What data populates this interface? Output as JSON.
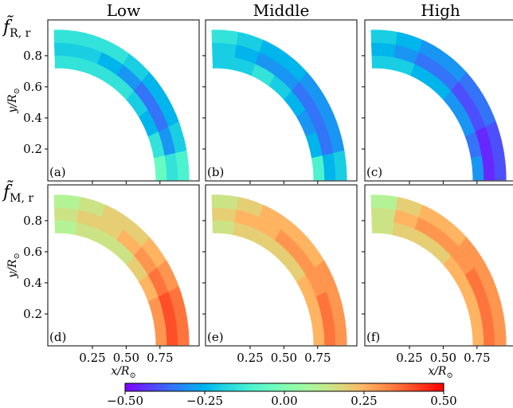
{
  "chart_data": {
    "type": "heatmap",
    "colormap": "rainbow",
    "column_titles": [
      "Low",
      "Middle",
      "High"
    ],
    "row_labels": [
      {
        "symbol": "f̃",
        "subscript": "R, r"
      },
      {
        "symbol": "f̃",
        "subscript": "M, r"
      }
    ],
    "ylabel": {
      "text": "y/R",
      "subscript": "⊙"
    },
    "xlabel": {
      "text": "x/R",
      "subscript": "⊙"
    },
    "xlim": [
      -0.08,
      1.04
    ],
    "ylim": [
      -0.005,
      1.03
    ],
    "xticks": [
      {
        "value": 0.25,
        "label": "0.25"
      },
      {
        "value": 0.5,
        "label": "0.50"
      },
      {
        "value": 0.75,
        "label": "0.75"
      }
    ],
    "yticks": [
      0.2,
      0.4,
      0.6,
      0.8
    ],
    "clim": [
      -0.5,
      0.5
    ],
    "cticks": [
      {
        "value": -0.5,
        "label": "−0.50"
      },
      {
        "value": -0.25,
        "label": "−0.25"
      },
      {
        "value": 0,
        "label": "0.00"
      },
      {
        "value": 0.25,
        "label": "0.25"
      },
      {
        "value": 0.5,
        "label": "0.50"
      }
    ],
    "panels": [
      {
        "label": "(a)",
        "values": [
          [
            -0.05,
            -0.15,
            -0.25,
            -0.2,
            -0.15,
            -0.15,
            -0.15,
            -0.15
          ],
          [
            -0.15,
            -0.3,
            -0.35,
            -0.35,
            -0.3,
            -0.25,
            -0.2,
            -0.2
          ],
          [
            -0.1,
            -0.2,
            -0.25,
            -0.25,
            -0.2,
            -0.15,
            -0.15,
            -0.15
          ]
        ]
      },
      {
        "label": "(b)",
        "values": [
          [
            -0.1,
            -0.25,
            -0.3,
            -0.25,
            -0.2,
            -0.15,
            -0.2,
            -0.2
          ],
          [
            -0.25,
            -0.35,
            -0.35,
            -0.35,
            -0.3,
            -0.3,
            -0.25,
            -0.2
          ],
          [
            -0.2,
            -0.3,
            -0.3,
            -0.3,
            -0.25,
            -0.25,
            -0.2,
            -0.15
          ]
        ]
      },
      {
        "label": "(c)",
        "values": [
          [
            -0.3,
            -0.35,
            -0.3,
            -0.3,
            -0.25,
            -0.25,
            -0.2,
            -0.2
          ],
          [
            -0.45,
            -0.45,
            -0.4,
            -0.4,
            -0.35,
            -0.35,
            -0.3,
            -0.25
          ],
          [
            -0.4,
            -0.4,
            -0.35,
            -0.35,
            -0.3,
            -0.3,
            -0.25,
            -0.2
          ]
        ]
      },
      {
        "label": "(d)",
        "values": [
          [
            0.3,
            0.3,
            0.25,
            0.2,
            0.15,
            0.15,
            0.15,
            0.1
          ],
          [
            0.4,
            0.4,
            0.35,
            0.3,
            0.25,
            0.2,
            0.2,
            0.15
          ],
          [
            0.35,
            0.35,
            0.3,
            0.25,
            0.2,
            0.2,
            0.15,
            0.1
          ]
        ]
      },
      {
        "label": "(e)",
        "values": [
          [
            0.25,
            0.25,
            0.25,
            0.2,
            0.2,
            0.2,
            0.2,
            0.15
          ],
          [
            0.35,
            0.35,
            0.3,
            0.3,
            0.3,
            0.25,
            0.25,
            0.2
          ],
          [
            0.3,
            0.3,
            0.3,
            0.25,
            0.25,
            0.25,
            0.2,
            0.15
          ]
        ]
      },
      {
        "label": "(f)",
        "values": [
          [
            0.25,
            0.25,
            0.25,
            0.25,
            0.2,
            0.2,
            0.2,
            0.15
          ],
          [
            0.35,
            0.35,
            0.35,
            0.3,
            0.3,
            0.3,
            0.25,
            0.15
          ],
          [
            0.3,
            0.3,
            0.3,
            0.3,
            0.25,
            0.25,
            0.2,
            0.1
          ]
        ]
      }
    ]
  }
}
